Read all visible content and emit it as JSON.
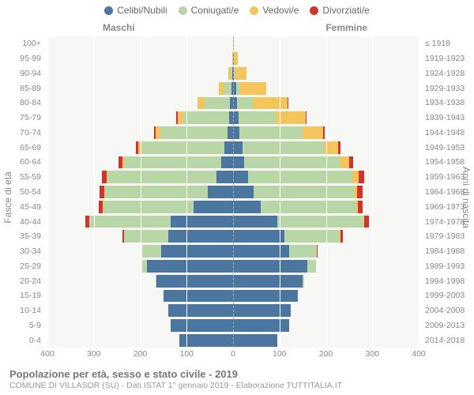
{
  "legend": {
    "items": [
      {
        "label": "Celibi/Nubili",
        "color": "#4a76a0"
      },
      {
        "label": "Coniugati/e",
        "color": "#b9d6a7"
      },
      {
        "label": "Vedovi/e",
        "color": "#f4c55c"
      },
      {
        "label": "Divorziati/e",
        "color": "#d2332e"
      }
    ]
  },
  "sex_labels": {
    "male": "Maschi",
    "female": "Femmine"
  },
  "axis": {
    "left_title": "Fasce di età",
    "right_title": "Anni di nascita",
    "x_ticks": [
      -400,
      -300,
      -200,
      -100,
      0,
      100,
      200,
      300,
      400
    ],
    "x_tick_labels": [
      "400",
      "300",
      "200",
      "100",
      "0",
      "100",
      "200",
      "300",
      "400"
    ],
    "x_max": 400
  },
  "rows": [
    {
      "age": "100+",
      "birth": "≤ 1918",
      "m": [
        0,
        0,
        0,
        0
      ],
      "f": [
        0,
        0,
        1,
        0
      ]
    },
    {
      "age": "95-99",
      "birth": "1919-1923",
      "m": [
        0,
        0,
        2,
        0
      ],
      "f": [
        1,
        0,
        10,
        0
      ]
    },
    {
      "age": "90-94",
      "birth": "1924-1928",
      "m": [
        2,
        3,
        6,
        0
      ],
      "f": [
        2,
        2,
        25,
        0
      ]
    },
    {
      "age": "85-89",
      "birth": "1929-1933",
      "m": [
        3,
        18,
        10,
        0
      ],
      "f": [
        6,
        10,
        55,
        0
      ]
    },
    {
      "age": "80-84",
      "birth": "1934-1938",
      "m": [
        6,
        55,
        15,
        0
      ],
      "f": [
        8,
        35,
        75,
        2
      ]
    },
    {
      "age": "75-79",
      "birth": "1939-1943",
      "m": [
        8,
        100,
        12,
        2
      ],
      "f": [
        12,
        80,
        65,
        2
      ]
    },
    {
      "age": "70-74",
      "birth": "1944-1948",
      "m": [
        12,
        145,
        10,
        3
      ],
      "f": [
        14,
        135,
        45,
        4
      ]
    },
    {
      "age": "65-69",
      "birth": "1949-1953",
      "m": [
        18,
        180,
        6,
        5
      ],
      "f": [
        20,
        175,
        32,
        5
      ]
    },
    {
      "age": "60-64",
      "birth": "1954-1958",
      "m": [
        25,
        210,
        4,
        7
      ],
      "f": [
        24,
        205,
        22,
        8
      ]
    },
    {
      "age": "55-59",
      "birth": "1959-1963",
      "m": [
        35,
        235,
        3,
        10
      ],
      "f": [
        32,
        225,
        14,
        12
      ]
    },
    {
      "age": "50-54",
      "birth": "1964-1968",
      "m": [
        55,
        220,
        2,
        10
      ],
      "f": [
        45,
        215,
        8,
        12
      ]
    },
    {
      "age": "45-49",
      "birth": "1969-1973",
      "m": [
        85,
        195,
        1,
        9
      ],
      "f": [
        60,
        205,
        4,
        10
      ]
    },
    {
      "age": "40-44",
      "birth": "1974-1978",
      "m": [
        135,
        175,
        0,
        8
      ],
      "f": [
        95,
        185,
        2,
        10
      ]
    },
    {
      "age": "35-39",
      "birth": "1979-1983",
      "m": [
        140,
        95,
        0,
        3
      ],
      "f": [
        110,
        120,
        1,
        5
      ]
    },
    {
      "age": "30-34",
      "birth": "1984-1988",
      "m": [
        155,
        40,
        0,
        1
      ],
      "f": [
        120,
        60,
        0,
        2
      ]
    },
    {
      "age": "25-29",
      "birth": "1989-1993",
      "m": [
        185,
        10,
        0,
        0
      ],
      "f": [
        160,
        18,
        0,
        0
      ]
    },
    {
      "age": "20-24",
      "birth": "1994-1998",
      "m": [
        165,
        1,
        0,
        0
      ],
      "f": [
        150,
        3,
        0,
        0
      ]
    },
    {
      "age": "15-19",
      "birth": "1999-2003",
      "m": [
        150,
        0,
        0,
        0
      ],
      "f": [
        140,
        0,
        0,
        0
      ]
    },
    {
      "age": "10-14",
      "birth": "2004-2008",
      "m": [
        140,
        0,
        0,
        0
      ],
      "f": [
        125,
        0,
        0,
        0
      ]
    },
    {
      "age": "5-9",
      "birth": "2009-2013",
      "m": [
        135,
        0,
        0,
        0
      ],
      "f": [
        120,
        0,
        0,
        0
      ]
    },
    {
      "age": "0-4",
      "birth": "2014-2018",
      "m": [
        115,
        0,
        0,
        0
      ],
      "f": [
        95,
        0,
        0,
        0
      ]
    }
  ],
  "colors": {
    "series": [
      "#4a76a0",
      "#b9d6a7",
      "#f4c55c",
      "#d2332e"
    ],
    "plot_bg": "#f7f7f5",
    "grid": "#ffffff",
    "center_dash": "#aaaaaa"
  },
  "footer": {
    "line1": "Popolazione per età, sesso e stato civile - 2019",
    "line2": "COMUNE DI VILLASOR (SU) - Dati ISTAT 1° gennaio 2019 - Elaborazione TUTTITALIA.IT"
  }
}
